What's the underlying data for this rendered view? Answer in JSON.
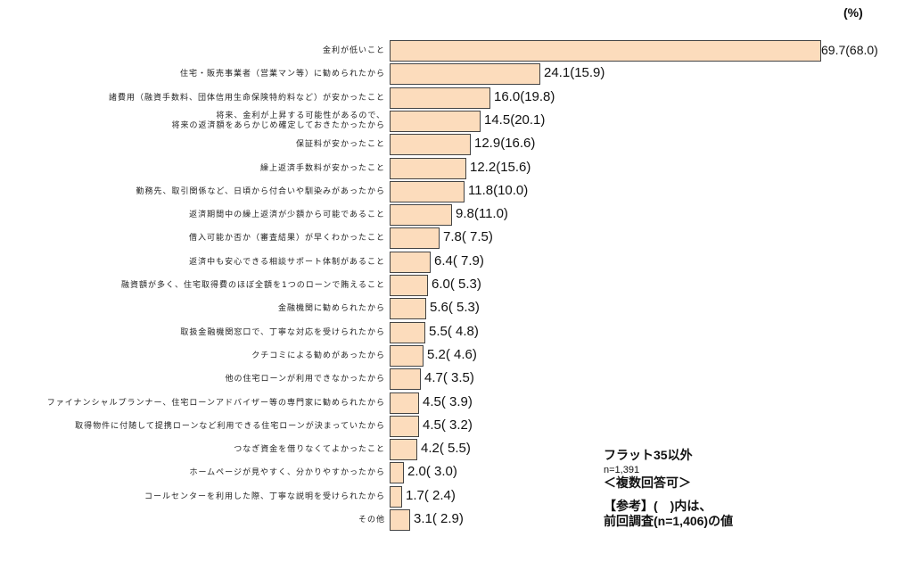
{
  "unit_label": "(%)",
  "legend": {
    "series": "フラット35以外",
    "n": "n=1,391",
    "note": "＜複数回答可＞",
    "ref_line1": "【参考】(　)内は、",
    "ref_line2": "前回調査(n=1,406)の値"
  },
  "rows": [
    {
      "label": "金利が低いこと",
      "label2": "",
      "value": 69.7,
      "prev": 68.0,
      "text": "69.7(68.0)"
    },
    {
      "label": "住宅・販売事業者（営業マン等）に勧められたから",
      "label2": "",
      "value": 24.1,
      "prev": 15.9,
      "text": "24.1(15.9)"
    },
    {
      "label": "諸費用（融資手数料、団体信用生命保険特約料など）が安かったこと",
      "label2": "",
      "value": 16.0,
      "prev": 19.8,
      "text": "16.0(19.8)"
    },
    {
      "label": "将来、金利が上昇する可能性があるので、",
      "label2": "将来の返済額をあらかじめ確定しておきたかったから",
      "value": 14.5,
      "prev": 20.1,
      "text": "14.5(20.1)"
    },
    {
      "label": "保証料が安かったこと",
      "label2": "",
      "value": 12.9,
      "prev": 16.6,
      "text": "12.9(16.6)"
    },
    {
      "label": "繰上返済手数料が安かったこと",
      "label2": "",
      "value": 12.2,
      "prev": 15.6,
      "text": "12.2(15.6)"
    },
    {
      "label": "勤務先、取引関係など、日頃から付合いや馴染みがあったから",
      "label2": "",
      "value": 11.8,
      "prev": 10.0,
      "text": "11.8(10.0)"
    },
    {
      "label": "返済期間中の繰上返済が少額から可能であること",
      "label2": "",
      "value": 9.8,
      "prev": 11.0,
      "text": "9.8(11.0)"
    },
    {
      "label": "借入可能か否か（審査結果）が早くわかったこと",
      "label2": "",
      "value": 7.8,
      "prev": 7.5,
      "text": "7.8( 7.5)"
    },
    {
      "label": "返済中も安心できる相談サポート体制があること",
      "label2": "",
      "value": 6.4,
      "prev": 7.9,
      "text": "6.4( 7.9)"
    },
    {
      "label": "融資額が多く、住宅取得費のほぼ全額を1つのローンで賄えること",
      "label2": "",
      "value": 6.0,
      "prev": 5.3,
      "text": "6.0( 5.3)"
    },
    {
      "label": "金融機関に勧められたから",
      "label2": "",
      "value": 5.6,
      "prev": 5.3,
      "text": "5.6( 5.3)"
    },
    {
      "label": "取扱金融機関窓口で、丁寧な対応を受けられたから",
      "label2": "",
      "value": 5.5,
      "prev": 4.8,
      "text": "5.5( 4.8)"
    },
    {
      "label": "クチコミによる勧めがあったから",
      "label2": "",
      "value": 5.2,
      "prev": 4.6,
      "text": "5.2( 4.6)"
    },
    {
      "label": "他の住宅ローンが利用できなかったから",
      "label2": "",
      "value": 4.7,
      "prev": 3.5,
      "text": "4.7( 3.5)"
    },
    {
      "label": "ファイナンシャルプランナー、住宅ローンアドバイザー等の専門家に勧められたから",
      "label2": "",
      "value": 4.5,
      "prev": 3.9,
      "text": "4.5( 3.9)"
    },
    {
      "label": "取得物件に付随して提携ローンなど利用できる住宅ローンが決まっていたから",
      "label2": "",
      "value": 4.5,
      "prev": 3.2,
      "text": "4.5( 3.2)"
    },
    {
      "label": "つなぎ資金を借りなくてよかったこと",
      "label2": "",
      "value": 4.2,
      "prev": 5.5,
      "text": "4.2( 5.5)"
    },
    {
      "label": "ホームページが見やすく、分かりやすかったから",
      "label2": "",
      "value": 2.0,
      "prev": 3.0,
      "text": "2.0( 3.0)"
    },
    {
      "label": "コールセンターを利用した際、丁寧な説明を受けられたから",
      "label2": "",
      "value": 1.7,
      "prev": 2.4,
      "text": "1.7( 2.4)"
    },
    {
      "label": "その他",
      "label2": "",
      "value": 3.1,
      "prev": 2.9,
      "text": "3.1( 2.9)"
    }
  ],
  "colors": {
    "bar_fill": "#fcdcbc",
    "bar_border": "#444444"
  },
  "chart_data": {
    "type": "bar",
    "orientation": "horizontal",
    "title": "",
    "xlabel": "",
    "ylabel": "",
    "unit": "(%)",
    "categories": [
      "金利が低いこと",
      "住宅・販売事業者（営業マン等）に勧められたから",
      "諸費用（融資手数料、団体信用生命保険特約料など）が安かったこと",
      "将来、金利が上昇する可能性があるので、将来の返済額をあらかじめ確定しておきたかったから",
      "保証料が安かったこと",
      "繰上返済手数料が安かったこと",
      "勤務先、取引関係など、日頃から付合いや馴染みがあったから",
      "返済期間中の繰上返済が少額から可能であること",
      "借入可能か否か（審査結果）が早くわかったこと",
      "返済中も安心できる相談サポート体制があること",
      "融資額が多く、住宅取得費のほぼ全額を1つのローンで賄えること",
      "金融機関に勧められたから",
      "取扱金融機関窓口で、丁寧な対応を受けられたから",
      "クチコミによる勧めがあったから",
      "他の住宅ローンが利用できなかったから",
      "ファイナンシャルプランナー、住宅ローンアドバイザー等の専門家に勧められたから",
      "取得物件に付随して提携ローンなど利用できる住宅ローンが決まっていたから",
      "つなぎ資金を借りなくてよかったこと",
      "ホームページが見やすく、分かりやすかったから",
      "コールセンターを利用した際、丁寧な説明を受けられたから",
      "その他"
    ],
    "series": [
      {
        "name": "フラット35以外 (n=1,391)",
        "values": [
          69.7,
          24.1,
          16.0,
          14.5,
          12.9,
          12.2,
          11.8,
          9.8,
          7.8,
          6.4,
          6.0,
          5.6,
          5.5,
          5.2,
          4.7,
          4.5,
          4.5,
          4.2,
          2.0,
          1.7,
          3.1
        ]
      },
      {
        "name": "前回調査 (n=1,406) (参考値・括弧内)",
        "values": [
          68.0,
          15.9,
          19.8,
          20.1,
          16.6,
          15.6,
          10.0,
          11.0,
          7.5,
          7.9,
          5.3,
          5.3,
          4.8,
          4.6,
          3.5,
          3.9,
          3.2,
          5.5,
          3.0,
          2.4,
          2.9
        ]
      }
    ],
    "xlim": [
      0,
      70
    ],
    "grid": false,
    "legend_position": "bottom-right (text annotation)",
    "annotations": [
      "フラット35以外",
      "n=1,391",
      "＜複数回答可＞",
      "【参考】(　)内は、前回調査(n=1,406)の値"
    ]
  }
}
